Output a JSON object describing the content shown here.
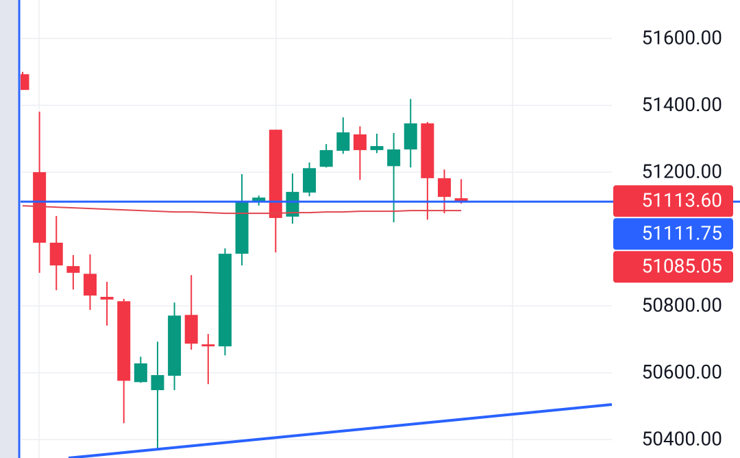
{
  "chart_data": {
    "type": "candlestick",
    "ylim": [
      50345,
      51715
    ],
    "yticks": [
      {
        "value": 50400,
        "label": "50400.00"
      },
      {
        "value": 50600,
        "label": "50600.00"
      },
      {
        "value": 50800,
        "label": "50800.00"
      },
      {
        "value": 51200,
        "label": "51200.00"
      },
      {
        "value": 51400,
        "label": "51400.00"
      },
      {
        "value": 51600,
        "label": "51600.00"
      }
    ],
    "grid": true,
    "up_color": "#089981",
    "down_color": "#f23645",
    "open": [
      51493,
      51200,
      50989,
      50919,
      50896,
      50827,
      50814,
      50572,
      50548,
      50591,
      50773,
      50685,
      50679,
      50956,
      51110,
      51327,
      51067,
      51139,
      51216,
      51264,
      51313,
      51266,
      51218,
      51268,
      51346,
      51182,
      51122
    ],
    "high": [
      51500,
      51381,
      51069,
      50952,
      50954,
      50872,
      50821,
      50648,
      50693,
      50810,
      50892,
      50716,
      50972,
      51194,
      51130,
      51327,
      51196,
      51229,
      51284,
      51364,
      51337,
      51315,
      51317,
      51419,
      51350,
      51208,
      51179
    ],
    "low": [
      51446,
      50899,
      50847,
      50849,
      50788,
      50741,
      50449,
      50570,
      50369,
      50548,
      50669,
      50566,
      50652,
      50921,
      51100,
      50960,
      51046,
      51128,
      51214,
      51255,
      51177,
      51257,
      51050,
      51214,
      51058,
      51077,
      51106
    ],
    "close": [
      51446,
      50989,
      50921,
      50899,
      50831,
      50819,
      50576,
      50628,
      50593,
      50771,
      50687,
      50679,
      50956,
      51114,
      51124,
      51063,
      51141,
      51212,
      51266,
      51319,
      51266,
      51278,
      51268,
      51346,
      51182,
      51126,
      51113.6
    ],
    "moving_average": {
      "color": "#e0454f",
      "values": [
        51099.5,
        51097.4,
        51095.4,
        51093.3,
        51091.3,
        51089.2,
        51087.2,
        51085.1,
        51083.1,
        51081.0,
        51081.0,
        51079.0,
        51076.9,
        51076.9,
        51076.9,
        51076.9,
        51079.0,
        51079.0,
        51081.0,
        51081.0,
        51083.1,
        51083.1,
        51083.1,
        51085.1,
        51085.1,
        51085.1,
        51085.05
      ]
    },
    "horizontal_line": {
      "value": 51111.75,
      "color": "#2962ff"
    },
    "price_labels": [
      {
        "value": 51113.6,
        "label": "51113.60",
        "color": "#f23645"
      },
      {
        "value": 51111.75,
        "label": "51111.75",
        "color": "#2962ff"
      },
      {
        "value": 51085.05,
        "label": "51085.05",
        "color": "#f23645"
      }
    ]
  }
}
